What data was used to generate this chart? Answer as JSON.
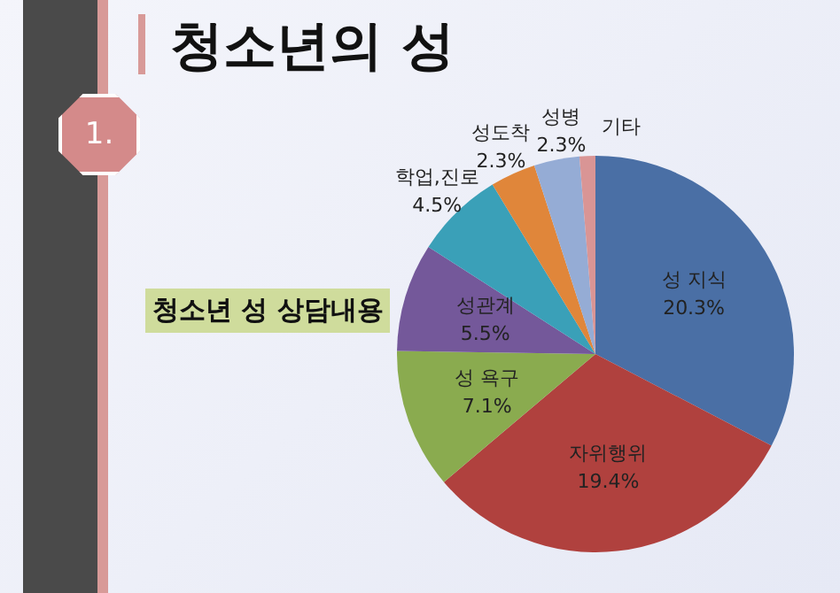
{
  "chart_data": {
    "type": "pie",
    "title": "청소년의 성",
    "subtitle": "청소년 성 상담내용",
    "annotations": [
      "1."
    ],
    "categories": [
      "성 지식",
      "자위행위",
      "성 욕구",
      "성관계",
      "학업,진로",
      "성도착",
      "성병",
      "기타"
    ],
    "values": [
      20.3,
      19.4,
      7.1,
      5.5,
      4.5,
      2.3,
      2.3,
      0.8
    ],
    "value_labels": [
      "20.3%",
      "19.4%",
      "7.1%",
      "5.5%",
      "4.5%",
      "2.3%",
      "2.3%",
      null
    ],
    "colors": [
      "#4a6fa5",
      "#b0413e",
      "#8aab4f",
      "#74589a",
      "#3aa0b8",
      "#e0863a",
      "#95acd5",
      "#d99595"
    ]
  }
}
